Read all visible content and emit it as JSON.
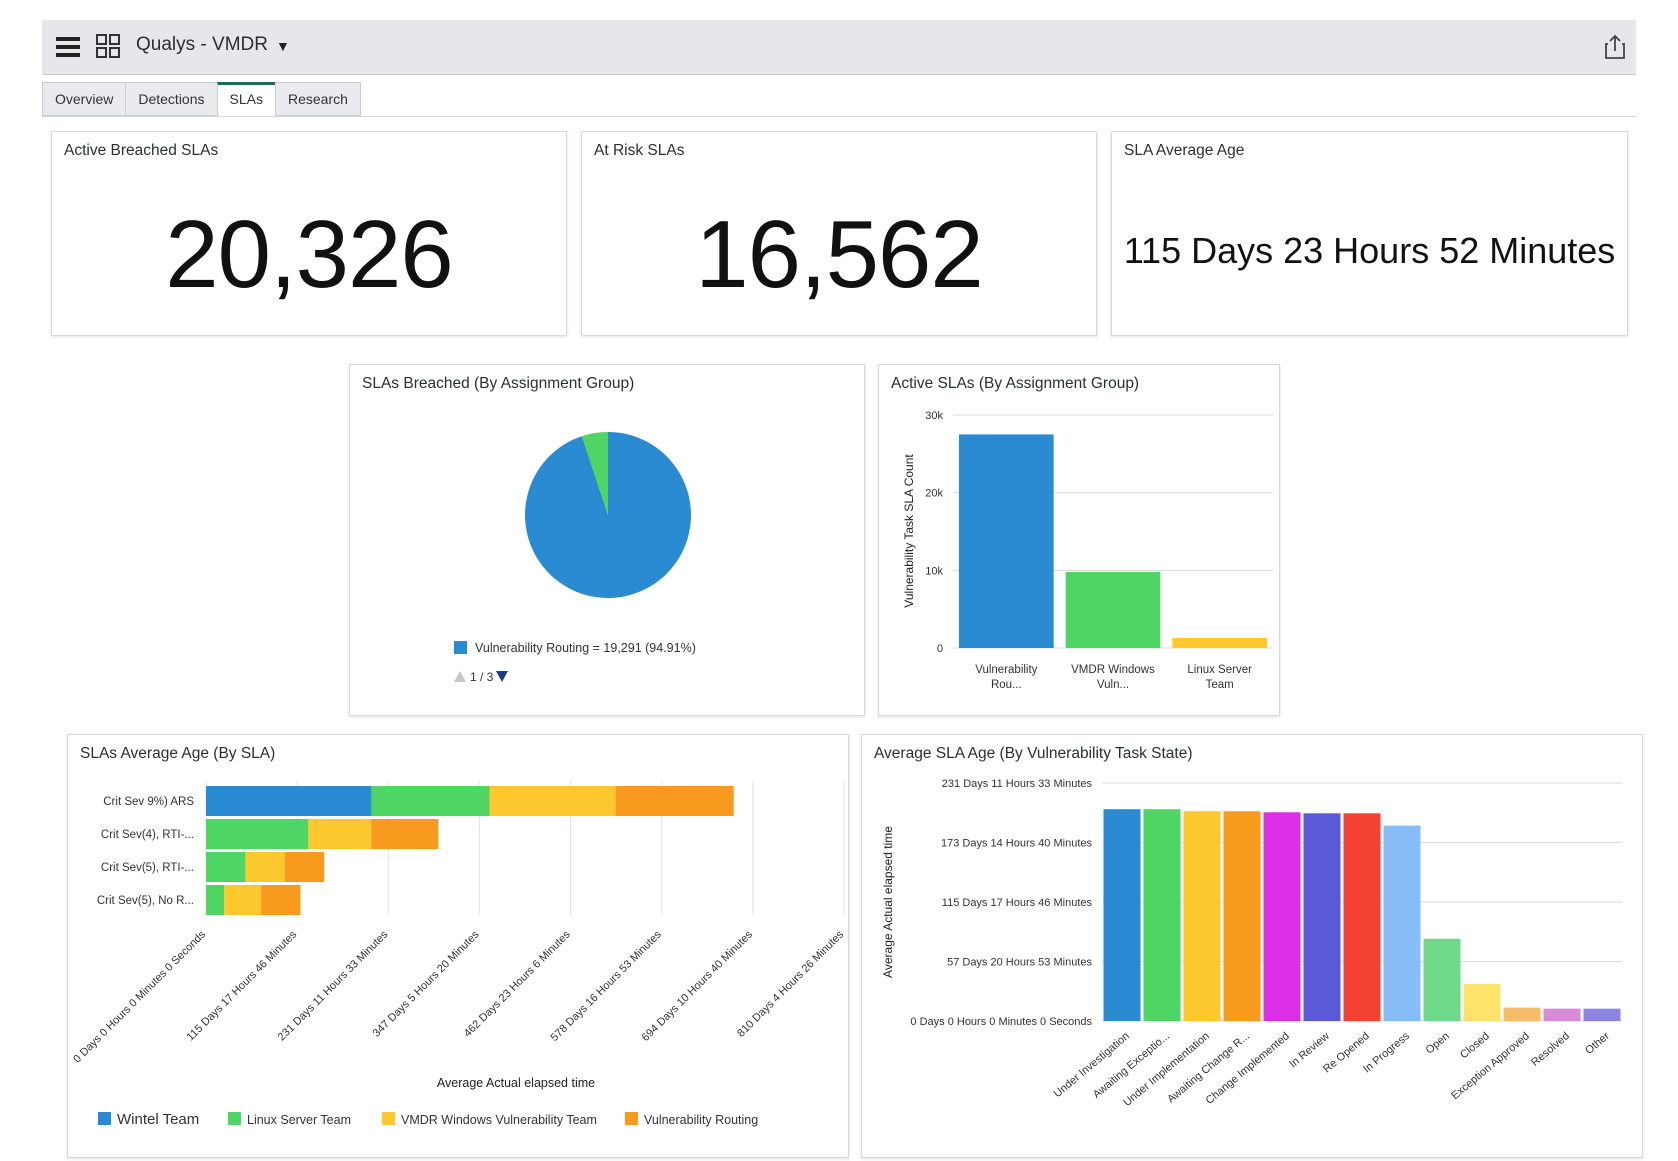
{
  "app": {
    "title": "Qualys - VMDR",
    "icons": [
      "menu-icon",
      "grid-icon",
      "chevron-down-icon",
      "share-icon"
    ]
  },
  "tabs": [
    {
      "label": "Overview",
      "active": false
    },
    {
      "label": "Detections",
      "active": false
    },
    {
      "label": "SLAs",
      "active": true
    },
    {
      "label": "Research",
      "active": false
    }
  ],
  "kpis": {
    "active_breached": {
      "title": "Active Breached SLAs",
      "value": "20,326"
    },
    "at_risk": {
      "title": "At Risk SLAs",
      "value": "16,562"
    },
    "average_age": {
      "title": "SLA Average Age",
      "value": "115 Days 23 Hours 52 Minutes"
    }
  },
  "colors": {
    "blue": "#2a8bd3",
    "green": "#4fd563",
    "yellow": "#fcc82d",
    "orange": "#f89a1e",
    "magenta": "#da2fe6",
    "indigo": "#5a5ad9",
    "red": "#f44232",
    "lightblue": "#86bdf6",
    "lightgreen": "#6fd98a",
    "paleyellow": "#fde36a",
    "peach": "#f7bd6a",
    "pink": "#d98bd5",
    "lavender": "#8c84e0"
  },
  "chart_data": [
    {
      "id": "breached-pie",
      "type": "pie",
      "title": "SLAs Breached (By Assignment Group)",
      "slices": [
        {
          "label": "Vulnerability Routing",
          "value": 19291,
          "percent": 94.91,
          "color": "#2a8bd3"
        },
        {
          "label": "",
          "value": 1035,
          "percent": 5.09,
          "color": "#4fd563"
        }
      ],
      "legend_text": "Vulnerability Routing = 19,291 (94.91%)",
      "pager": "1 / 3"
    },
    {
      "id": "active-bar",
      "type": "bar",
      "title": "Active SLAs (By Assignment Group)",
      "ylabel": "Vulnerability Task SLA Count",
      "ylim": [
        0,
        30000
      ],
      "yticks": [
        "0",
        "10k",
        "20k",
        "30k"
      ],
      "categories": [
        [
          "Vulnerability",
          "Rou..."
        ],
        [
          "VMDR Windows",
          "Vuln..."
        ],
        [
          "Linux Server",
          "Team"
        ]
      ],
      "values": [
        27500,
        9800,
        1300
      ],
      "colors": [
        "#2a8bd3",
        "#4fd563",
        "#fcc82d"
      ]
    },
    {
      "id": "age-by-sla",
      "type": "bar",
      "orientation": "horizontal-stacked",
      "title": "SLAs Average Age (By SLA)",
      "xlabel": "Average Actual elapsed time",
      "xticks": [
        "0 Days 0 Hours 0 Minutes 0 Seconds",
        "115 Days 17 Hours 46 Minutes",
        "231 Days 11 Hours 33 Minutes",
        "347 Days 5 Hours 20 Minutes",
        "462 Days 23 Hours 6 Minutes",
        "578 Days 16 Hours 53 Minutes",
        "694 Days 10 Hours 40 Minutes",
        "810 Days 4 Hours 26 Minutes"
      ],
      "xlim_days": [
        0,
        810
      ],
      "categories": [
        "Crit Sev 9%) ARS",
        "Crit Sev(4), RTI-...",
        "Crit Sev(5), RTI-...",
        "Crit Sev(5), No R..."
      ],
      "series": [
        {
          "name": "Wintel Team",
          "color": "#2a8bd3",
          "values": [
            210,
            0,
            0,
            0
          ]
        },
        {
          "name": "Linux Server Team",
          "color": "#4fd563",
          "values": [
            150,
            130,
            50,
            23
          ]
        },
        {
          "name": "VMDR Windows Vulnerability Team",
          "color": "#fcc82d",
          "values": [
            160,
            80,
            50,
            47
          ]
        },
        {
          "name": "Vulnerability Routing",
          "color": "#f89a1e",
          "values": [
            150,
            85,
            50,
            50
          ]
        }
      ]
    },
    {
      "id": "age-by-state",
      "type": "bar",
      "title": "Average SLA Age (By Vulnerability Task State)",
      "ylabel": "Average Actual elapsed time",
      "yticks": [
        "0 Days 0 Hours 0 Minutes 0 Seconds",
        "57 Days 20 Hours 53 Minutes",
        "115 Days 17 Hours 46 Minutes",
        "173 Days 14 Hours 40 Minutes",
        "231 Days 11 Hours 33 Minutes"
      ],
      "ylim_days": [
        0,
        231.48
      ],
      "categories": [
        "Under Investigation",
        "Awaiting Exceptio...",
        "Under Implementation",
        "Awaiting Change R...",
        "Change Implemented",
        "In Review",
        "Re Opened",
        "In Progress",
        "Open",
        "Closed",
        "Exception Approved",
        "Resolved",
        "Other"
      ],
      "values": [
        206,
        206,
        204,
        204,
        203,
        202,
        202,
        190,
        80,
        36,
        13,
        12,
        12
      ],
      "colors": [
        "#2a8bd3",
        "#4fd563",
        "#fcc82d",
        "#f89a1e",
        "#da2fe6",
        "#5a5ad9",
        "#f44232",
        "#86bdf6",
        "#6fd98a",
        "#fde36a",
        "#f7bd6a",
        "#d98bd5",
        "#8c84e0"
      ]
    }
  ]
}
